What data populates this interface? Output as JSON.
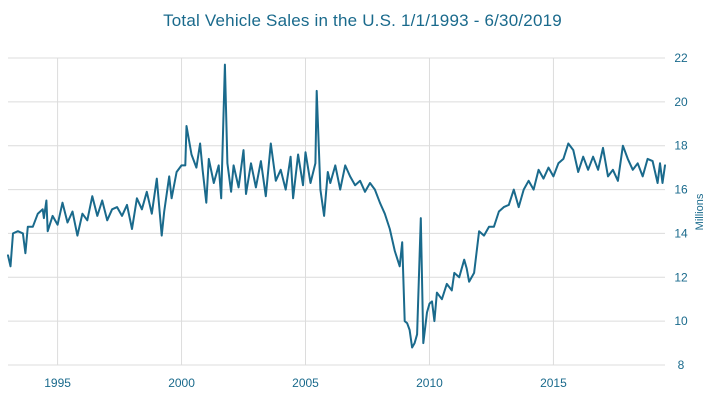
{
  "chart_data": {
    "type": "line",
    "title": "Total Vehicle Sales in the U.S. 1/1/1993 - 6/30/2019",
    "ylabel": "Millions",
    "xlabel": "",
    "xlim": [
      1993.0,
      2019.5
    ],
    "ylim": [
      8,
      22
    ],
    "x_ticks": [
      1995,
      2000,
      2005,
      2010,
      2015
    ],
    "y_ticks": [
      8,
      10,
      12,
      14,
      16,
      18,
      20,
      22
    ],
    "grid": true,
    "legend": "none",
    "colors": {
      "line": "#1a6a8c",
      "grid": "#dcdcdc",
      "text": "#1a6a8c"
    },
    "series": [
      {
        "points": [
          [
            1993.0,
            13.0
          ],
          [
            1993.1,
            12.5
          ],
          [
            1993.2,
            14.0
          ],
          [
            1993.4,
            14.1
          ],
          [
            1993.6,
            14.0
          ],
          [
            1993.7,
            13.1
          ],
          [
            1993.8,
            14.3
          ],
          [
            1994.0,
            14.3
          ],
          [
            1994.2,
            14.9
          ],
          [
            1994.4,
            15.1
          ],
          [
            1994.45,
            14.7
          ],
          [
            1994.55,
            15.5
          ],
          [
            1994.6,
            14.1
          ],
          [
            1994.8,
            14.8
          ],
          [
            1995.0,
            14.4
          ],
          [
            1995.2,
            15.4
          ],
          [
            1995.4,
            14.5
          ],
          [
            1995.6,
            15.0
          ],
          [
            1995.8,
            13.9
          ],
          [
            1996.0,
            14.9
          ],
          [
            1996.2,
            14.6
          ],
          [
            1996.4,
            15.7
          ],
          [
            1996.6,
            14.8
          ],
          [
            1996.8,
            15.5
          ],
          [
            1997.0,
            14.6
          ],
          [
            1997.2,
            15.1
          ],
          [
            1997.4,
            15.2
          ],
          [
            1997.6,
            14.8
          ],
          [
            1997.8,
            15.3
          ],
          [
            1998.0,
            14.2
          ],
          [
            1998.2,
            15.6
          ],
          [
            1998.4,
            15.1
          ],
          [
            1998.6,
            15.9
          ],
          [
            1998.8,
            14.9
          ],
          [
            1999.0,
            16.5
          ],
          [
            1999.2,
            13.9
          ],
          [
            1999.3,
            15.0
          ],
          [
            1999.5,
            16.6
          ],
          [
            1999.6,
            15.6
          ],
          [
            1999.8,
            16.8
          ],
          [
            2000.0,
            17.1
          ],
          [
            2000.15,
            17.1
          ],
          [
            2000.2,
            18.9
          ],
          [
            2000.4,
            17.6
          ],
          [
            2000.6,
            17.0
          ],
          [
            2000.75,
            18.1
          ],
          [
            2000.85,
            16.9
          ],
          [
            2001.0,
            15.4
          ],
          [
            2001.1,
            17.4
          ],
          [
            2001.3,
            16.3
          ],
          [
            2001.5,
            17.1
          ],
          [
            2001.6,
            15.6
          ],
          [
            2001.75,
            21.7
          ],
          [
            2001.85,
            17.2
          ],
          [
            2002.0,
            15.9
          ],
          [
            2002.1,
            17.1
          ],
          [
            2002.3,
            16.1
          ],
          [
            2002.5,
            17.8
          ],
          [
            2002.6,
            15.8
          ],
          [
            2002.8,
            17.2
          ],
          [
            2003.0,
            16.1
          ],
          [
            2003.2,
            17.3
          ],
          [
            2003.4,
            15.7
          ],
          [
            2003.6,
            18.1
          ],
          [
            2003.8,
            16.4
          ],
          [
            2004.0,
            16.9
          ],
          [
            2004.2,
            16.0
          ],
          [
            2004.4,
            17.5
          ],
          [
            2004.5,
            15.6
          ],
          [
            2004.7,
            17.6
          ],
          [
            2004.9,
            16.2
          ],
          [
            2005.0,
            17.7
          ],
          [
            2005.2,
            16.3
          ],
          [
            2005.4,
            17.2
          ],
          [
            2005.45,
            20.5
          ],
          [
            2005.6,
            16.0
          ],
          [
            2005.75,
            14.8
          ],
          [
            2005.9,
            16.8
          ],
          [
            2006.0,
            16.3
          ],
          [
            2006.2,
            17.1
          ],
          [
            2006.4,
            16.0
          ],
          [
            2006.6,
            17.1
          ],
          [
            2006.8,
            16.6
          ],
          [
            2007.0,
            16.2
          ],
          [
            2007.2,
            16.4
          ],
          [
            2007.4,
            15.9
          ],
          [
            2007.6,
            16.3
          ],
          [
            2007.8,
            16.0
          ],
          [
            2008.0,
            15.4
          ],
          [
            2008.2,
            14.9
          ],
          [
            2008.4,
            14.2
          ],
          [
            2008.6,
            13.2
          ],
          [
            2008.8,
            12.5
          ],
          [
            2008.9,
            13.6
          ],
          [
            2009.0,
            10.0
          ],
          [
            2009.1,
            9.9
          ],
          [
            2009.2,
            9.6
          ],
          [
            2009.3,
            8.8
          ],
          [
            2009.4,
            9.0
          ],
          [
            2009.5,
            9.4
          ],
          [
            2009.65,
            14.7
          ],
          [
            2009.75,
            9.0
          ],
          [
            2009.9,
            10.4
          ],
          [
            2010.0,
            10.8
          ],
          [
            2010.1,
            10.9
          ],
          [
            2010.2,
            10.0
          ],
          [
            2010.3,
            11.3
          ],
          [
            2010.5,
            11.0
          ],
          [
            2010.7,
            11.7
          ],
          [
            2010.9,
            11.4
          ],
          [
            2011.0,
            12.2
          ],
          [
            2011.2,
            12.0
          ],
          [
            2011.4,
            12.8
          ],
          [
            2011.5,
            12.4
          ],
          [
            2011.6,
            11.8
          ],
          [
            2011.8,
            12.2
          ],
          [
            2012.0,
            14.1
          ],
          [
            2012.2,
            13.9
          ],
          [
            2012.4,
            14.3
          ],
          [
            2012.6,
            14.3
          ],
          [
            2012.8,
            15.0
          ],
          [
            2013.0,
            15.2
          ],
          [
            2013.2,
            15.3
          ],
          [
            2013.4,
            16.0
          ],
          [
            2013.6,
            15.2
          ],
          [
            2013.8,
            16.0
          ],
          [
            2014.0,
            16.4
          ],
          [
            2014.2,
            16.0
          ],
          [
            2014.4,
            16.9
          ],
          [
            2014.6,
            16.5
          ],
          [
            2014.8,
            17.0
          ],
          [
            2015.0,
            16.6
          ],
          [
            2015.2,
            17.2
          ],
          [
            2015.4,
            17.4
          ],
          [
            2015.6,
            18.1
          ],
          [
            2015.8,
            17.8
          ],
          [
            2016.0,
            16.8
          ],
          [
            2016.2,
            17.5
          ],
          [
            2016.4,
            16.9
          ],
          [
            2016.6,
            17.5
          ],
          [
            2016.8,
            16.9
          ],
          [
            2017.0,
            17.9
          ],
          [
            2017.2,
            16.6
          ],
          [
            2017.4,
            16.9
          ],
          [
            2017.6,
            16.4
          ],
          [
            2017.8,
            18.0
          ],
          [
            2018.0,
            17.4
          ],
          [
            2018.2,
            16.9
          ],
          [
            2018.4,
            17.2
          ],
          [
            2018.6,
            16.6
          ],
          [
            2018.8,
            17.4
          ],
          [
            2019.0,
            17.3
          ],
          [
            2019.2,
            16.3
          ],
          [
            2019.3,
            17.2
          ],
          [
            2019.4,
            16.3
          ],
          [
            2019.5,
            17.1
          ]
        ]
      }
    ]
  }
}
